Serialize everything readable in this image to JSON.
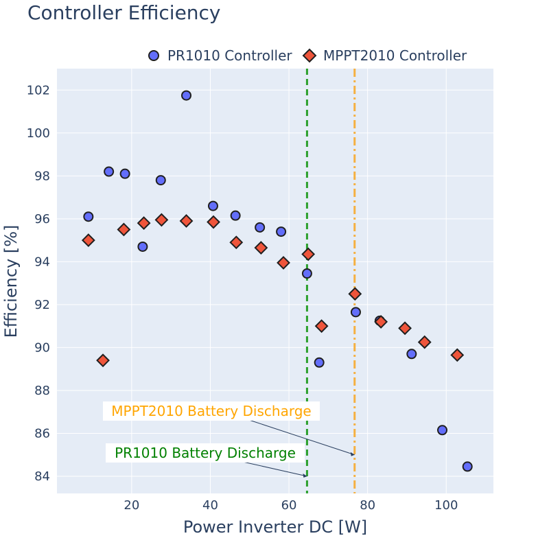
{
  "chart_data": {
    "type": "scatter",
    "title": "Controller Efficiency",
    "xlabel": "Power Inverter DC [W]",
    "ylabel": "Efficiency [%]",
    "xlim": [
      1,
      112
    ],
    "ylim": [
      83.2,
      103
    ],
    "x_ticks": [
      20,
      40,
      60,
      80,
      100
    ],
    "y_ticks": [
      84,
      86,
      88,
      90,
      92,
      94,
      96,
      98,
      100,
      102
    ],
    "grid": true,
    "legend_position": "top-right",
    "series": [
      {
        "name": "PR1010 Controller",
        "marker": "circle",
        "color": "#636efa",
        "points": [
          {
            "x": 9.0,
            "y": 96.1
          },
          {
            "x": 14.2,
            "y": 98.2
          },
          {
            "x": 18.3,
            "y": 98.1
          },
          {
            "x": 22.8,
            "y": 94.7
          },
          {
            "x": 27.4,
            "y": 97.8
          },
          {
            "x": 33.9,
            "y": 101.75
          },
          {
            "x": 40.7,
            "y": 96.6
          },
          {
            "x": 46.4,
            "y": 96.15
          },
          {
            "x": 52.6,
            "y": 95.6
          },
          {
            "x": 58.0,
            "y": 95.4
          },
          {
            "x": 64.6,
            "y": 93.45
          },
          {
            "x": 67.7,
            "y": 89.3
          },
          {
            "x": 77.0,
            "y": 91.65
          },
          {
            "x": 83.1,
            "y": 91.25
          },
          {
            "x": 91.2,
            "y": 89.7
          },
          {
            "x": 99.0,
            "y": 86.15
          },
          {
            "x": 105.4,
            "y": 84.45
          }
        ]
      },
      {
        "name": "MPPT2010 Controller",
        "marker": "diamond",
        "color": "#ef553b",
        "points": [
          {
            "x": 9.0,
            "y": 95.0
          },
          {
            "x": 12.7,
            "y": 89.4
          },
          {
            "x": 18.0,
            "y": 95.5
          },
          {
            "x": 23.1,
            "y": 95.8
          },
          {
            "x": 27.6,
            "y": 95.95
          },
          {
            "x": 33.9,
            "y": 95.9
          },
          {
            "x": 40.8,
            "y": 95.85
          },
          {
            "x": 46.6,
            "y": 94.9
          },
          {
            "x": 52.9,
            "y": 94.65
          },
          {
            "x": 58.6,
            "y": 93.95
          },
          {
            "x": 64.9,
            "y": 94.35
          },
          {
            "x": 68.3,
            "y": 91.0
          },
          {
            "x": 76.8,
            "y": 92.5
          },
          {
            "x": 83.4,
            "y": 91.2
          },
          {
            "x": 89.5,
            "y": 90.9
          },
          {
            "x": 94.5,
            "y": 90.25
          },
          {
            "x": 102.8,
            "y": 89.65
          }
        ]
      }
    ],
    "vlines": [
      {
        "x": 64.6,
        "color": "#2ca02c",
        "dash": "dash",
        "annotation": "PR1010  Battery Discharge",
        "annotation_color": "#008000",
        "annotation_y": 84.0
      },
      {
        "x": 76.7,
        "color": "#f5b041",
        "dash": "dashdot",
        "annotation": "MPPT2010  Battery Discharge",
        "annotation_color": "#ffa500",
        "annotation_y": 85.0
      }
    ]
  }
}
